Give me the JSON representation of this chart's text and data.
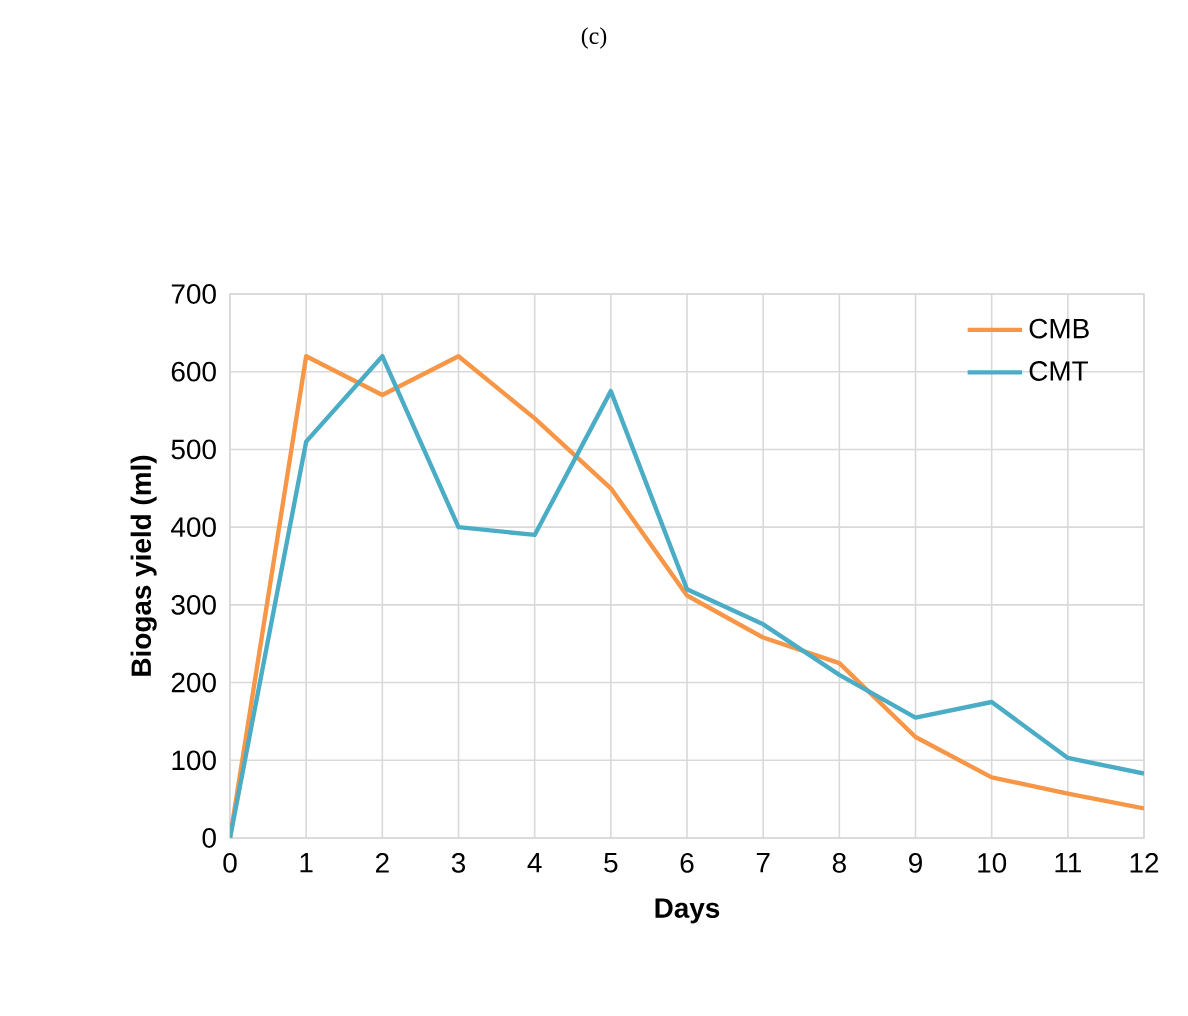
{
  "chart_data": {
    "type": "line",
    "title": "(c)",
    "xlabel": "Days",
    "ylabel": "Biogas yield  (ml)",
    "x": [
      0,
      1,
      2,
      3,
      4,
      5,
      6,
      7,
      8,
      9,
      10,
      11,
      12
    ],
    "series": [
      {
        "name": "CMB",
        "color": "#f79646",
        "values": [
          0,
          620,
          570,
          620,
          540,
          450,
          312,
          258,
          225,
          130,
          78,
          57,
          38
        ]
      },
      {
        "name": "CMT",
        "color": "#4bacc6",
        "values": [
          0,
          510,
          620,
          400,
          390,
          575,
          320,
          275,
          210,
          155,
          175,
          103,
          83
        ]
      }
    ],
    "xlim": [
      0,
      12
    ],
    "xticks": [
      0,
      1,
      2,
      3,
      4,
      5,
      6,
      7,
      8,
      9,
      10,
      11,
      12
    ],
    "ylim": [
      0,
      700
    ],
    "yticks": [
      0,
      100,
      200,
      300,
      400,
      500,
      600,
      700
    ],
    "grid": true,
    "legend": "top right",
    "marker": "none",
    "line_style": "solid"
  }
}
